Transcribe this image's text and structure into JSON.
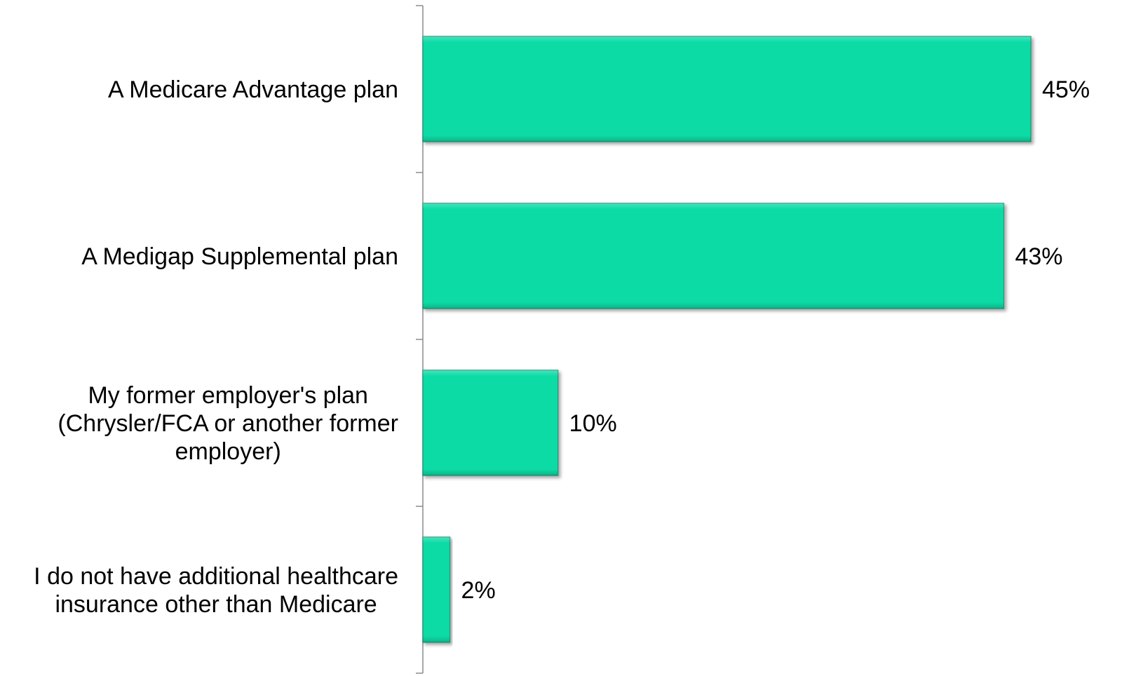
{
  "chart_data": {
    "type": "bar",
    "orientation": "horizontal",
    "categories": [
      "A Medicare Advantage plan",
      "A Medigap Supplemental plan",
      "My former employer's plan (Chrysler/FCA or another former employer)",
      "I do not have additional healthcare insurance other than Medicare"
    ],
    "category_lines": [
      [
        "A Medicare Advantage plan"
      ],
      [
        "A Medigap Supplemental plan"
      ],
      [
        "My former employer's plan",
        "(Chrysler/FCA or another former",
        "employer)"
      ],
      [
        "I do not have additional healthcare",
        "insurance other than Medicare"
      ]
    ],
    "values": [
      45,
      43,
      10,
      2
    ],
    "value_labels": [
      "45%",
      "43%",
      "10%",
      "2%"
    ],
    "unit": "%",
    "xlim": [
      0,
      45
    ],
    "grid": false,
    "legend": "none",
    "bar_color": "#08DBA5",
    "bar_edge_color": "#2A9E7F"
  }
}
